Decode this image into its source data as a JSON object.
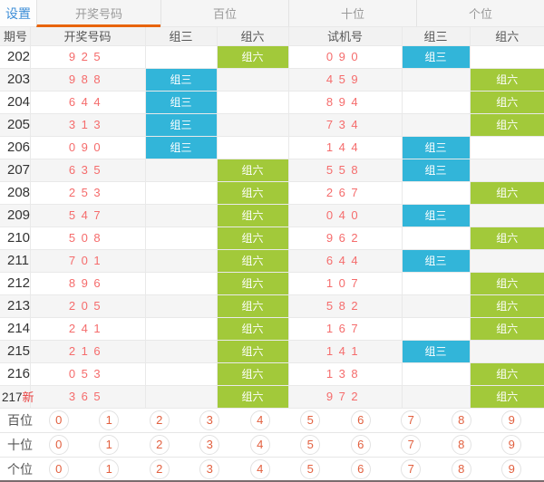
{
  "tabs": {
    "settings": "设置",
    "items": [
      "开奖号码",
      "百位",
      "十位",
      "个位"
    ],
    "active": "开奖号码"
  },
  "table": {
    "headers": [
      "期号",
      "开奖号码",
      "组三",
      "组六",
      "试机号",
      "组三",
      "组六"
    ],
    "badge_labels": {
      "zu3": "组三",
      "zu6": "组六"
    },
    "rows": [
      {
        "period": "202",
        "new": "",
        "lottery": "925",
        "left": "zu6",
        "test": "090",
        "right": "zu3"
      },
      {
        "period": "203",
        "new": "",
        "lottery": "988",
        "left": "zu3",
        "test": "459",
        "right": "zu6"
      },
      {
        "period": "204",
        "new": "",
        "lottery": "644",
        "left": "zu3",
        "test": "894",
        "right": "zu6"
      },
      {
        "period": "205",
        "new": "",
        "lottery": "313",
        "left": "zu3",
        "test": "734",
        "right": "zu6"
      },
      {
        "period": "206",
        "new": "",
        "lottery": "090",
        "left": "zu3",
        "test": "144",
        "right": "zu3"
      },
      {
        "period": "207",
        "new": "",
        "lottery": "635",
        "left": "zu6",
        "test": "558",
        "right": "zu3"
      },
      {
        "period": "208",
        "new": "",
        "lottery": "253",
        "left": "zu6",
        "test": "267",
        "right": "zu6"
      },
      {
        "period": "209",
        "new": "",
        "lottery": "547",
        "left": "zu6",
        "test": "040",
        "right": "zu3"
      },
      {
        "period": "210",
        "new": "",
        "lottery": "508",
        "left": "zu6",
        "test": "962",
        "right": "zu6"
      },
      {
        "period": "211",
        "new": "",
        "lottery": "701",
        "left": "zu6",
        "test": "644",
        "right": "zu3"
      },
      {
        "period": "212",
        "new": "",
        "lottery": "896",
        "left": "zu6",
        "test": "107",
        "right": "zu6"
      },
      {
        "period": "213",
        "new": "",
        "lottery": "205",
        "left": "zu6",
        "test": "582",
        "right": "zu6"
      },
      {
        "period": "214",
        "new": "",
        "lottery": "241",
        "left": "zu6",
        "test": "167",
        "right": "zu6"
      },
      {
        "period": "215",
        "new": "",
        "lottery": "216",
        "left": "zu6",
        "test": "141",
        "right": "zu3"
      },
      {
        "period": "216",
        "new": "",
        "lottery": "053",
        "left": "zu6",
        "test": "138",
        "right": "zu6"
      },
      {
        "period": "217",
        "new": "新",
        "lottery": "365",
        "left": "zu6",
        "test": "972",
        "right": "zu6"
      }
    ]
  },
  "digit_panel": {
    "rows": [
      {
        "label": "百位",
        "digits": [
          "0",
          "1",
          "2",
          "3",
          "4",
          "5",
          "6",
          "7",
          "8",
          "9"
        ]
      },
      {
        "label": "十位",
        "digits": [
          "0",
          "1",
          "2",
          "3",
          "4",
          "5",
          "6",
          "7",
          "8",
          "9"
        ]
      },
      {
        "label": "个位",
        "digits": [
          "0",
          "1",
          "2",
          "3",
          "4",
          "5",
          "6",
          "7",
          "8",
          "9"
        ]
      }
    ]
  },
  "colors": {
    "accent_orange": "#e8640c",
    "link_blue": "#3f8fd8",
    "badge_blue": "#32b5d9",
    "badge_green": "#a2c93a",
    "number_red": "#f56c6c",
    "digit_orange": "#e2603f"
  }
}
